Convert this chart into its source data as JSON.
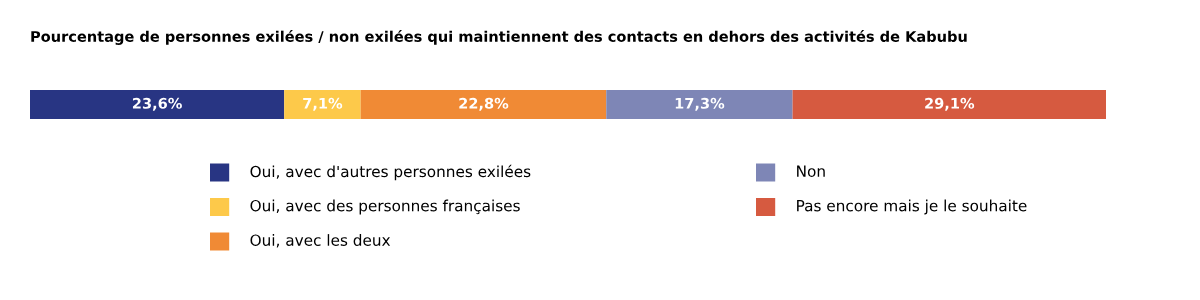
{
  "chart_data": {
    "type": "bar",
    "orientation": "horizontal",
    "stacked": true,
    "title": "Pourcentage de personnes exilées / non exilées qui maintiennent des contacts en dehors des activités de Kabubu",
    "categories": [
      null
    ],
    "series": [
      {
        "name": "Oui, avec d'autres personnes exilées",
        "color": "#283583",
        "values": [
          23.6
        ],
        "value_labels": [
          "23,6%"
        ]
      },
      {
        "name": "Oui, avec des personnes françaises",
        "color": "#fdc94a",
        "values": [
          7.1
        ],
        "value_labels": [
          "7,1%"
        ]
      },
      {
        "name": "Oui, avec les deux",
        "color": "#f08a35",
        "values": [
          22.8
        ],
        "value_labels": [
          "22,8%"
        ]
      },
      {
        "name": "Non",
        "color": "#7e86b6",
        "values": [
          17.3
        ],
        "value_labels": [
          "17,3%"
        ]
      },
      {
        "name": "Pas encore mais je le souhaite",
        "color": "#d65a40",
        "values": [
          29.1
        ],
        "value_labels": [
          "29,1%"
        ]
      }
    ],
    "legend": "bottom"
  }
}
